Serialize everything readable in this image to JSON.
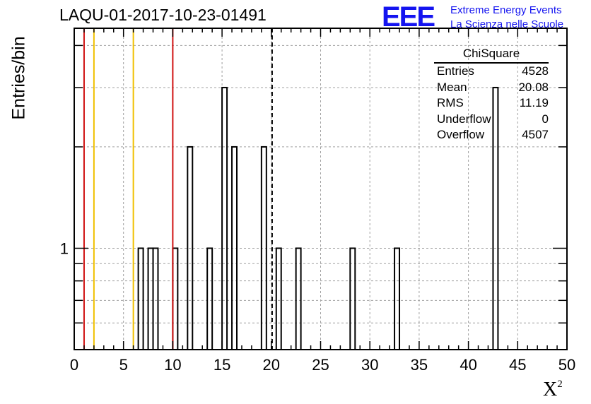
{
  "header": {
    "title": "LAQU-01-2017-10-23-01491"
  },
  "logo": {
    "mark": "EEE",
    "line1": "Extreme Energy Events",
    "line2": "La Scienza nelle Scuole",
    "color": "#1414f0"
  },
  "stats": {
    "title": "ChiSquare",
    "rows": [
      {
        "label": "Entries",
        "value": "4528"
      },
      {
        "label": "Mean",
        "value": "20.08"
      },
      {
        "label": "RMS",
        "value": "11.19"
      },
      {
        "label": "Underflow",
        "value": "0"
      },
      {
        "label": "Overflow",
        "value": "4507"
      }
    ]
  },
  "chart_data": {
    "type": "bar",
    "subtype": "histogram",
    "title": "LAQU-01-2017-10-23-01491",
    "xlabel": "X",
    "xlabel_superscript": "2",
    "ylabel": "Entries/bin",
    "xlim": [
      0,
      50
    ],
    "ylim": [
      0.5,
      4.5
    ],
    "yscale": "log",
    "grid": true,
    "bin_width": 0.5,
    "xticks": [
      "0",
      "5",
      "10",
      "15",
      "20",
      "25",
      "30",
      "35",
      "40",
      "45",
      "50"
    ],
    "yticks": [
      "1"
    ],
    "bins": [
      {
        "x": 6.5,
        "y": 1
      },
      {
        "x": 7.5,
        "y": 1
      },
      {
        "x": 8.0,
        "y": 1
      },
      {
        "x": 10.0,
        "y": 1
      },
      {
        "x": 11.5,
        "y": 2
      },
      {
        "x": 13.5,
        "y": 1
      },
      {
        "x": 15.0,
        "y": 3
      },
      {
        "x": 16.0,
        "y": 2
      },
      {
        "x": 19.0,
        "y": 2
      },
      {
        "x": 20.5,
        "y": 1
      },
      {
        "x": 22.5,
        "y": 1
      },
      {
        "x": 28.0,
        "y": 1
      },
      {
        "x": 32.5,
        "y": 1
      },
      {
        "x": 42.5,
        "y": 3
      }
    ],
    "reference_lines": [
      {
        "x": 1,
        "color": "#d01010",
        "style": "solid"
      },
      {
        "x": 2,
        "color": "#f0c000",
        "style": "solid"
      },
      {
        "x": 6,
        "color": "#f0c000",
        "style": "solid"
      },
      {
        "x": 10,
        "color": "#d01010",
        "style": "solid"
      },
      {
        "x": 20.08,
        "color": "#000000",
        "style": "dashed"
      }
    ]
  }
}
